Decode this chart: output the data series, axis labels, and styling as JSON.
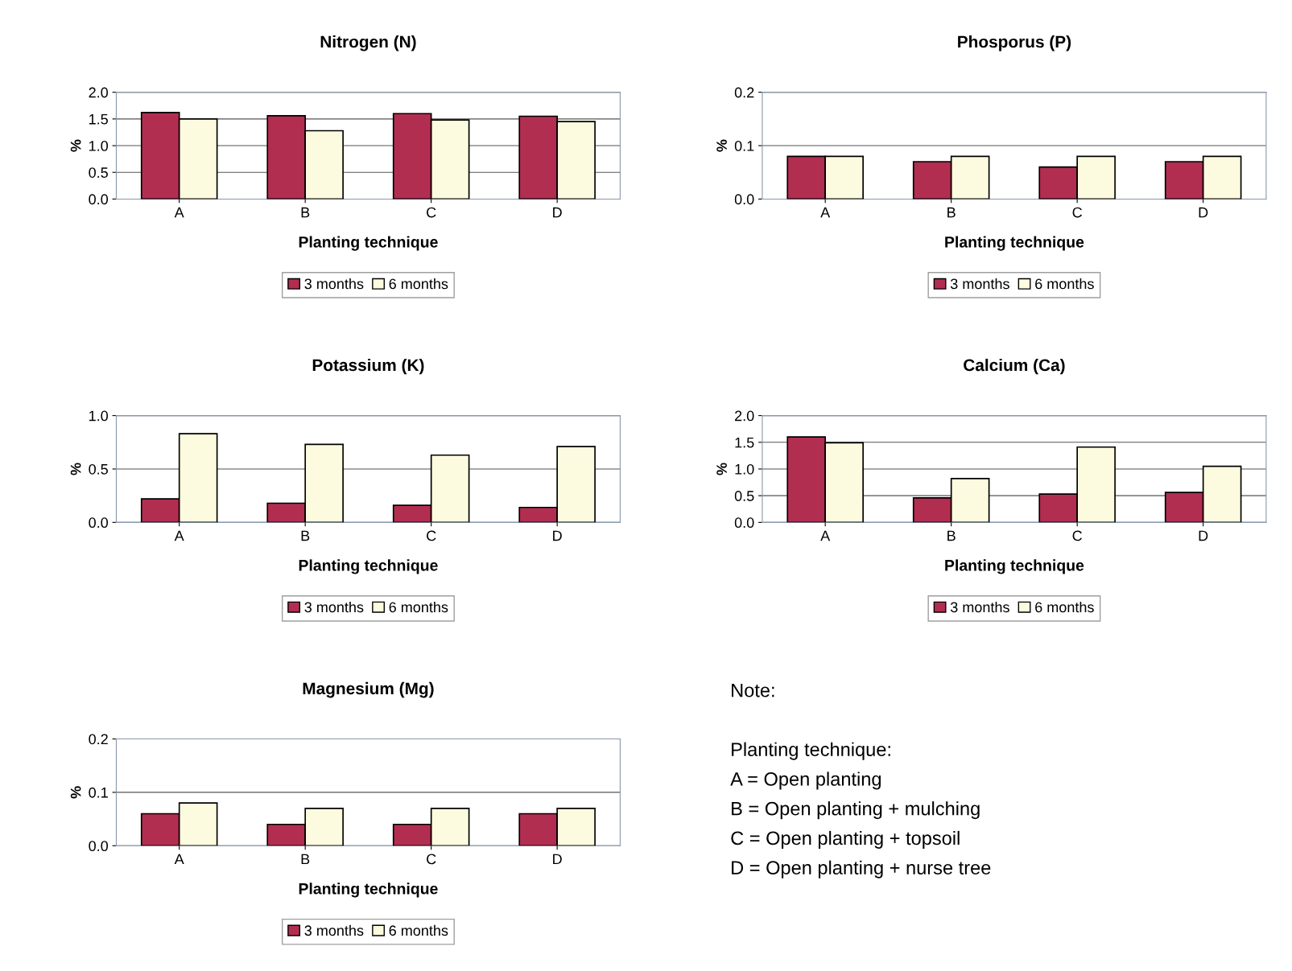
{
  "chart_data": [
    {
      "type": "bar",
      "title": "Nitrogen (N)",
      "xlabel": "Planting technique",
      "ylabel": "%",
      "categories": [
        "A",
        "B",
        "C",
        "D"
      ],
      "series": [
        {
          "name": "3 months",
          "color": "#b22e50",
          "values": [
            1.62,
            1.56,
            1.6,
            1.55
          ]
        },
        {
          "name": "6 months",
          "color": "#fcfbdf",
          "values": [
            1.5,
            1.28,
            1.48,
            1.45
          ]
        }
      ],
      "ylim": [
        0,
        2
      ],
      "yticks": [
        {
          "value": 0,
          "label": "0.0"
        },
        0.5,
        {
          "value": 1,
          "label": "1.0"
        },
        1.5,
        {
          "value": 2,
          "label": "2.0"
        }
      ],
      "grid": "y",
      "legend": "bottom"
    },
    {
      "type": "bar",
      "title": "Phosporus (P)",
      "xlabel": "Planting technique",
      "ylabel": "%",
      "categories": [
        "A",
        "B",
        "C",
        "D"
      ],
      "series": [
        {
          "name": "3 months",
          "color": "#b22e50",
          "values": [
            0.08,
            0.07,
            0.06,
            0.07
          ]
        },
        {
          "name": "6 months",
          "color": "#fcfbdf",
          "values": [
            0.08,
            0.08,
            0.08,
            0.08
          ]
        }
      ],
      "ylim": [
        0,
        0.2
      ],
      "yticks": [
        {
          "value": 0,
          "label": "0.0"
        },
        0.1,
        0.2
      ],
      "grid": "y",
      "legend": "bottom"
    },
    {
      "type": "bar",
      "title": "Potassium (K)",
      "xlabel": "Planting technique",
      "ylabel": "%",
      "categories": [
        "A",
        "B",
        "C",
        "D"
      ],
      "series": [
        {
          "name": "3 months",
          "color": "#b22e50",
          "values": [
            0.22,
            0.18,
            0.16,
            0.14
          ]
        },
        {
          "name": "6 months",
          "color": "#fcfbdf",
          "values": [
            0.83,
            0.73,
            0.63,
            0.71
          ]
        }
      ],
      "ylim": [
        0,
        1
      ],
      "yticks": [
        {
          "value": 0,
          "label": "0.0"
        },
        0.5,
        {
          "value": 1,
          "label": "1.0"
        }
      ],
      "grid": "y",
      "legend": "bottom"
    },
    {
      "type": "bar",
      "title": "Calcium (Ca)",
      "xlabel": "Planting technique",
      "ylabel": "%",
      "categories": [
        "A",
        "B",
        "C",
        "D"
      ],
      "series": [
        {
          "name": "3 months",
          "color": "#b22e50",
          "values": [
            1.6,
            0.46,
            0.53,
            0.56
          ]
        },
        {
          "name": "6 months",
          "color": "#fcfbdf",
          "values": [
            1.49,
            0.82,
            1.41,
            1.05
          ]
        }
      ],
      "ylim": [
        0,
        2
      ],
      "yticks": [
        {
          "value": 0,
          "label": "0.0"
        },
        0.5,
        {
          "value": 1,
          "label": "1.0"
        },
        1.5,
        {
          "value": 2,
          "label": "2.0"
        }
      ],
      "grid": "y",
      "legend": "bottom"
    },
    {
      "type": "bar",
      "title": "Magnesium (Mg)",
      "xlabel": "Planting technique",
      "ylabel": "%",
      "categories": [
        "A",
        "B",
        "C",
        "D"
      ],
      "series": [
        {
          "name": "3 months",
          "color": "#b22e50",
          "values": [
            0.06,
            0.04,
            0.04,
            0.06
          ]
        },
        {
          "name": "6 months",
          "color": "#fcfbdf",
          "values": [
            0.08,
            0.07,
            0.07,
            0.07
          ]
        }
      ],
      "ylim": [
        0,
        0.2
      ],
      "yticks": [
        {
          "value": 0,
          "label": "0.0"
        },
        0.1,
        0.2
      ],
      "grid": "y",
      "legend": "bottom"
    },
    {
      "type": "other",
      "annotations": [
        "Note:",
        "Planting technique:",
        "A = Open planting",
        "B = Open planting + mulching",
        "C = Open planting + topsoil",
        "D = Open planting + nurse tree"
      ]
    }
  ]
}
